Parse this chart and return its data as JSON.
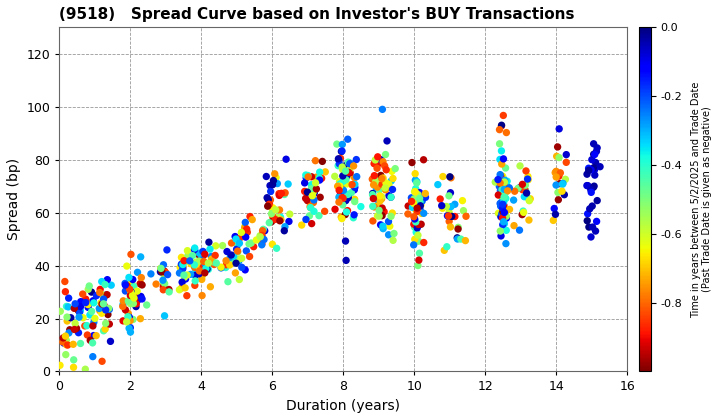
{
  "title": "(9518)   Spread Curve based on Investor's BUY Transactions",
  "xlabel": "Duration (years)",
  "ylabel": "Spread (bp)",
  "colorbar_label": "Time in years between 5/2/2025 and Trade Date\n(Past Trade Date is given as negative)",
  "xlim": [
    0,
    16
  ],
  "ylim": [
    0,
    130
  ],
  "xticks": [
    0,
    2,
    4,
    6,
    8,
    10,
    12,
    14,
    16
  ],
  "yticks": [
    0,
    20,
    40,
    60,
    80,
    100,
    120
  ],
  "cmap": "jet_r",
  "vmin": -1.0,
  "vmax": 0.0,
  "colorbar_ticks": [
    0.0,
    -0.2,
    -0.4,
    -0.6,
    -0.8
  ],
  "background_color": "#ffffff",
  "grid_color": "#999999",
  "marker_size": 28,
  "seed": 7
}
